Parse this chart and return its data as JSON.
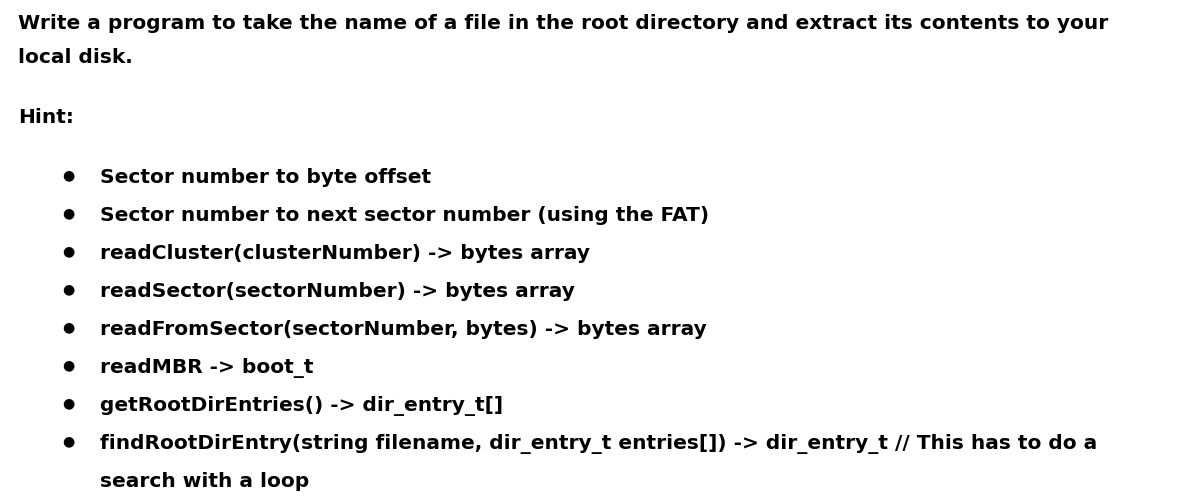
{
  "background_color": "#ffffff",
  "title_line1": "Write a program to take the name of a file in the root directory and extract its contents to your",
  "title_line2": "local disk.",
  "hint_label": "Hint:",
  "bullet_points": [
    "Sector number to byte offset",
    "Sector number to next sector number (using the FAT)",
    "readCluster(clusterNumber) -> bytes array",
    "readSector(sectorNumber) -> bytes array",
    "readFromSector(sectorNumber, bytes) -> bytes array",
    "readMBR -> boot_t",
    "getRootDirEntries() -> dir_entry_t[]",
    "findRootDirEntry(string filename, dir_entry_t entries[]) -> dir_entry_t // This has to do a",
    "search with a loop"
  ],
  "last_bullet_continuation": 8,
  "font_family": "DejaVu Sans",
  "title_fontsize": 14.5,
  "hint_fontsize": 14.5,
  "bullet_fontsize": 14.5,
  "text_color": "#000000",
  "bullet_char": "●",
  "fig_width": 12.0,
  "fig_height": 5.04,
  "dpi": 100
}
